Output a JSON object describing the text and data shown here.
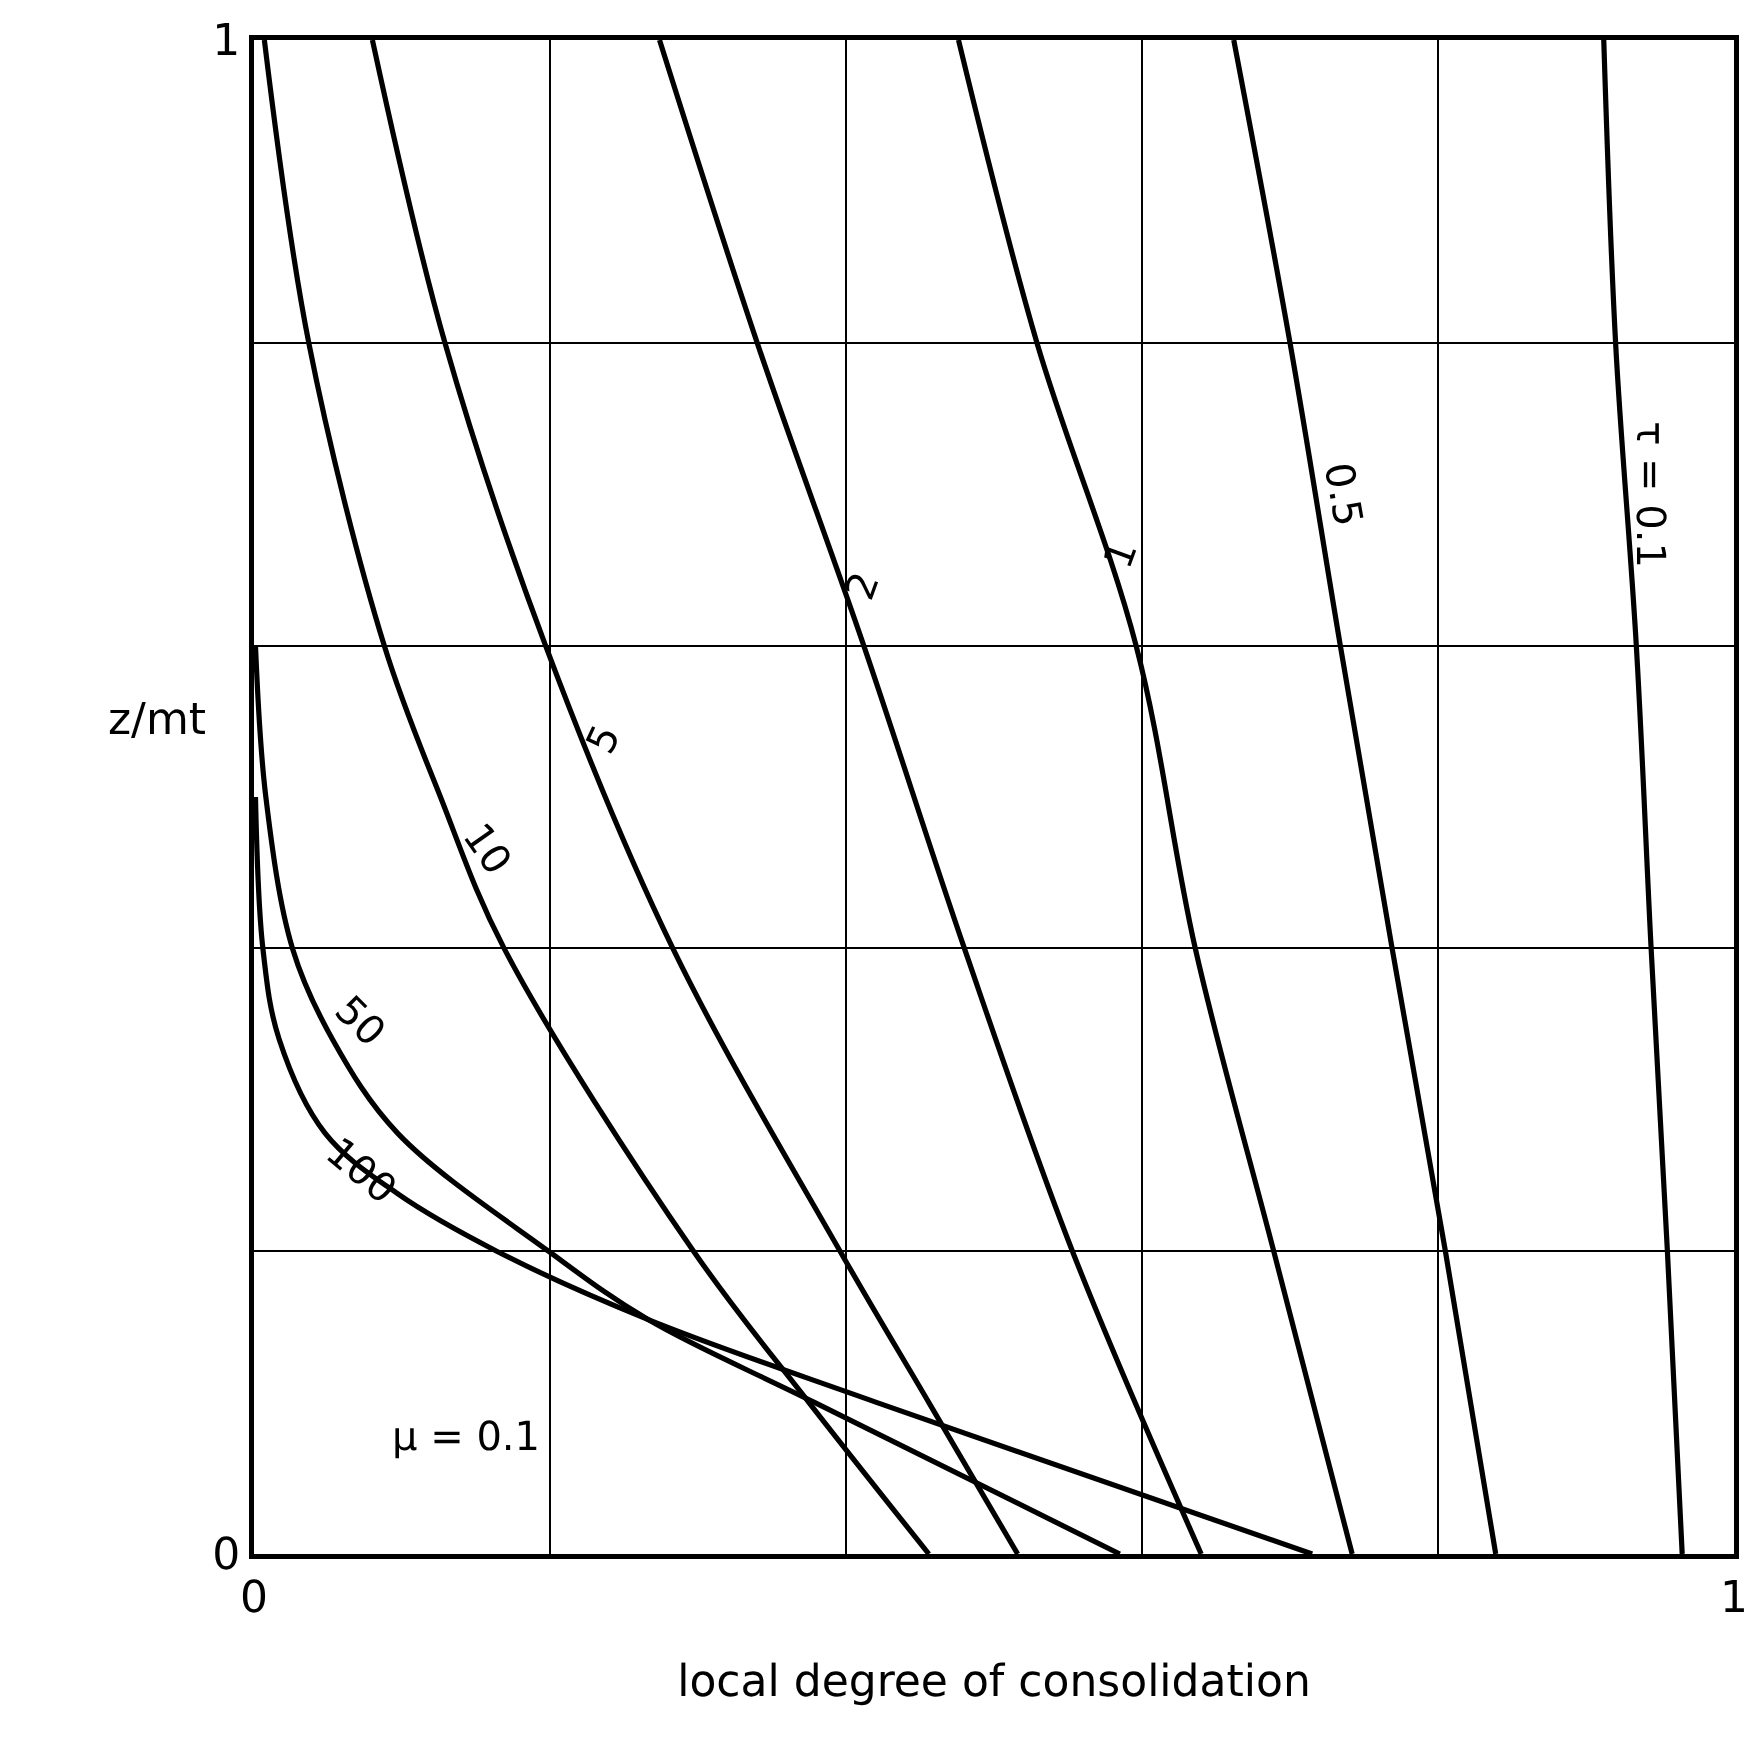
{
  "chart_data": {
    "type": "line",
    "xlabel": "local degree of consolidation",
    "ylabel": "z/mt",
    "xlim": [
      0,
      1
    ],
    "ylim": [
      0,
      1
    ],
    "xticks": [
      0,
      {
        "value": 0.2,
        "label": null
      },
      {
        "value": 0.4,
        "label": null
      },
      {
        "value": 0.6,
        "label": null
      },
      {
        "value": 0.8,
        "label": null
      },
      1
    ],
    "yticks": [
      0,
      {
        "value": 0.2,
        "label": null
      },
      {
        "value": 0.4,
        "label": null
      },
      {
        "value": 0.6,
        "label": null
      },
      {
        "value": 0.8,
        "label": null
      },
      1
    ],
    "grid": true,
    "marker": "none",
    "line_style": "solid",
    "series": [
      {
        "color": "#000000",
        "x": [
          0.912,
          0.92,
          0.934,
          0.944,
          0.955,
          0.965
        ],
        "values": [
          1,
          0.8,
          0.6,
          0.4,
          0.2,
          0
        ]
      },
      {
        "color": "#000000",
        "x": [
          0.662,
          0.7,
          0.734,
          0.769,
          0.805,
          0.839
        ],
        "values": [
          1,
          0.8,
          0.6,
          0.4,
          0.2,
          0
        ]
      },
      {
        "color": "#000000",
        "x": [
          0.476,
          0.529,
          0.596,
          0.636,
          0.689,
          0.742
        ],
        "values": [
          1,
          0.8,
          0.6,
          0.4,
          0.2,
          0
        ]
      },
      {
        "color": "#000000",
        "x": [
          0.274,
          0.34,
          0.412,
          0.48,
          0.553,
          0.64
        ],
        "values": [
          1,
          0.8,
          0.6,
          0.4,
          0.2,
          0
        ]
      },
      {
        "color": "#000000",
        "x": [
          0.08,
          0.129,
          0.197,
          0.283,
          0.396,
          0.456,
          0.516
        ],
        "values": [
          1,
          0.8,
          0.6,
          0.4,
          0.2,
          0.1,
          0
        ]
      },
      {
        "color": "#000000",
        "x": [
          0.007,
          0.037,
          0.088,
          0.126,
          0.169,
          0.297,
          0.375,
          0.456
        ],
        "values": [
          1,
          0.8,
          0.6,
          0.5,
          0.4,
          0.2,
          0.1,
          0
        ]
      },
      {
        "color": "#000000",
        "x": [
          0.001,
          0.008,
          0.026,
          0.053,
          0.097,
          0.199,
          0.266,
          0.379,
          0.585
        ],
        "values": [
          0.6,
          0.5,
          0.4,
          0.34,
          0.278,
          0.2,
          0.155,
          0.1,
          0
        ]
      },
      {
        "color": "#000000",
        "x": [
          0.001,
          0.006,
          0.017,
          0.048,
          0.097,
          0.164,
          0.266,
          0.421,
          0.715
        ],
        "values": [
          0.5,
          0.4,
          0.34,
          0.278,
          0.238,
          0.2,
          0.155,
          0.1,
          0
        ]
      }
    ],
    "annotations": [
      {
        "text": "τ = 0.1",
        "x": 0.925,
        "y": 0.7
      },
      {
        "text": "0.5",
        "x": 0.72,
        "y": 0.7
      },
      {
        "text": "1",
        "x": 0.572,
        "y": 0.66
      },
      {
        "text": "2",
        "x": 0.394,
        "y": 0.64
      },
      {
        "text": "5",
        "x": 0.219,
        "y": 0.538
      },
      {
        "text": "10",
        "x": 0.144,
        "y": 0.458
      },
      {
        "text": "50",
        "x": 0.053,
        "y": 0.34
      },
      {
        "text": "100",
        "x": 0.097,
        "y": 0.238
      },
      "μ = 0.1"
    ]
  }
}
